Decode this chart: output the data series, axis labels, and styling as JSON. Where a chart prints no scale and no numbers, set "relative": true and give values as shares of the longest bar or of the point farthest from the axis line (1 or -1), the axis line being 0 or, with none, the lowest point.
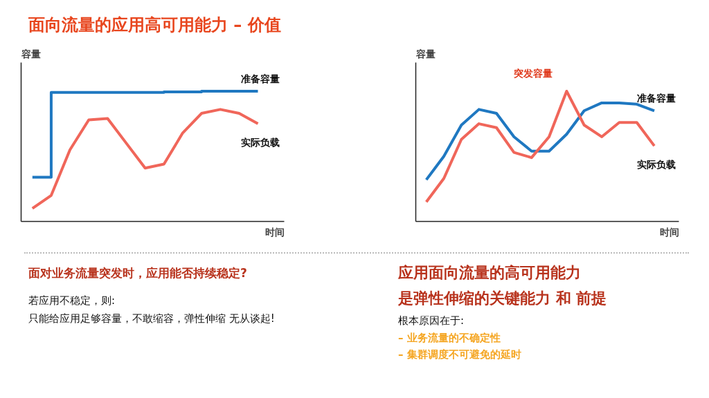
{
  "chart_data": [
    {
      "type": "line",
      "title": "面向流量的应用高可用能力 – 价值",
      "ylabel": "容量",
      "xlabel": "时间",
      "relative": true,
      "categories": [
        null,
        null,
        null,
        null,
        null,
        null,
        null,
        null,
        null,
        null,
        null,
        null,
        null
      ],
      "series": [
        {
          "name": "准备容量",
          "color": "#1f78c1",
          "type": "step",
          "values": [
            0.34,
            0.99,
            0.99,
            0.99,
            0.99,
            0.99,
            0.99,
            0.995,
            0.995,
            1.0,
            1.0,
            1.0,
            1.0
          ]
        },
        {
          "name": "实际负载",
          "color": "#f0665a",
          "values": [
            0.1,
            0.2,
            0.55,
            0.78,
            0.79,
            0.6,
            0.41,
            0.44,
            0.68,
            0.83,
            0.86,
            0.83,
            0.75
          ]
        }
      ],
      "annotations": [
        "面对业务流量突发时，应用能否持续稳定?",
        "若应用不稳定，则:",
        "只能给应用足够容量，不敢缩容，弹性伸缩 无从谈起!"
      ]
    },
    {
      "type": "line",
      "ylabel": "容量",
      "xlabel": "时间",
      "relative": true,
      "categories": [
        null,
        null,
        null,
        null,
        null,
        null,
        null,
        null,
        null,
        null,
        null,
        null,
        null,
        null
      ],
      "series": [
        {
          "name": "准备容量",
          "color": "#1f78c1",
          "values": [
            0.32,
            0.5,
            0.74,
            0.86,
            0.83,
            0.65,
            0.54,
            0.54,
            0.67,
            0.85,
            0.91,
            0.91,
            0.9,
            0.85
          ]
        },
        {
          "name": "实际负载",
          "color": "#f0665a",
          "values": [
            0.15,
            0.33,
            0.63,
            0.75,
            0.72,
            0.53,
            0.49,
            0.65,
            1.0,
            0.74,
            0.65,
            0.76,
            0.76,
            0.58
          ]
        }
      ],
      "annotations": [
        "突发容量",
        "应用面向流量的高可用能力",
        "是弹性伸缩的关键能力 和 前提",
        "根本原因在于:",
        "– 业务流量的不确定性",
        "– 集群调度不可避免的延时"
      ]
    }
  ]
}
